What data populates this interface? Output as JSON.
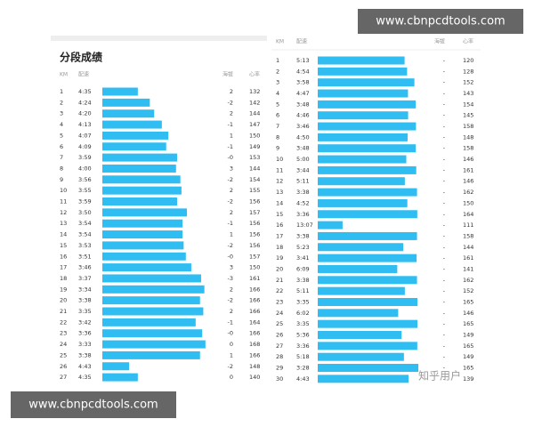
{
  "left": {
    "title": "分段成绩",
    "header": [
      "KM",
      "配速",
      "海拔",
      "心率"
    ],
    "rows": [
      [
        "1",
        "4:35",
        "2",
        "132"
      ],
      [
        "2",
        "4:24",
        "-2",
        "142"
      ],
      [
        "3",
        "4:20",
        "2",
        "144"
      ],
      [
        "4",
        "4:13",
        "-1",
        "147"
      ],
      [
        "5",
        "4:07",
        "1",
        "150"
      ],
      [
        "6",
        "4:09",
        "-1",
        "149"
      ],
      [
        "7",
        "3:59",
        "-0",
        "153"
      ],
      [
        "8",
        "4:00",
        "3",
        "144"
      ],
      [
        "9",
        "3:56",
        "-2",
        "154"
      ],
      [
        "10",
        "3:55",
        "2",
        "155"
      ],
      [
        "11",
        "3:59",
        "-2",
        "156"
      ],
      [
        "12",
        "3:50",
        "2",
        "157"
      ],
      [
        "13",
        "3:54",
        "-1",
        "156"
      ],
      [
        "14",
        "3:54",
        "1",
        "156"
      ],
      [
        "15",
        "3:53",
        "-2",
        "156"
      ],
      [
        "16",
        "3:51",
        "-0",
        "157"
      ],
      [
        "17",
        "3:46",
        "3",
        "150"
      ],
      [
        "18",
        "3:37",
        "-3",
        "161"
      ],
      [
        "19",
        "3:34",
        "2",
        "166"
      ],
      [
        "20",
        "3:38",
        "-2",
        "166"
      ],
      [
        "21",
        "3:35",
        "2",
        "166"
      ],
      [
        "22",
        "3:42",
        "-1",
        "164"
      ],
      [
        "23",
        "3:36",
        "-0",
        "166"
      ],
      [
        "24",
        "3:33",
        "0",
        "168"
      ],
      [
        "25",
        "3:38",
        "1",
        "166"
      ],
      [
        "26",
        "4:43",
        "-2",
        "148"
      ],
      [
        "27",
        "4:35",
        "0",
        "140"
      ]
    ]
  },
  "right": {
    "header": [
      "KM",
      "配速",
      "海拔",
      "心率"
    ],
    "rows": [
      [
        "1",
        "5:13",
        "-",
        "120"
      ],
      [
        "2",
        "4:54",
        "-",
        "128"
      ],
      [
        "3",
        "3:58",
        "-",
        "152"
      ],
      [
        "4",
        "4:47",
        "-",
        "143"
      ],
      [
        "5",
        "3:48",
        "-",
        "154"
      ],
      [
        "6",
        "4:46",
        "-",
        "145"
      ],
      [
        "7",
        "3:46",
        "-",
        "158"
      ],
      [
        "8",
        "4:50",
        "-",
        "148"
      ],
      [
        "9",
        "3:48",
        "-",
        "158"
      ],
      [
        "10",
        "5:00",
        "-",
        "146"
      ],
      [
        "11",
        "3:44",
        "-",
        "161"
      ],
      [
        "12",
        "5:11",
        "-",
        "146"
      ],
      [
        "13",
        "3:38",
        "-",
        "162"
      ],
      [
        "14",
        "4:52",
        "-",
        "150"
      ],
      [
        "15",
        "3:36",
        "-",
        "164"
      ],
      [
        "16",
        "13:07",
        "-",
        "111"
      ],
      [
        "17",
        "3:38",
        "-",
        "158"
      ],
      [
        "18",
        "5:23",
        "-",
        "144"
      ],
      [
        "19",
        "3:41",
        "-",
        "161"
      ],
      [
        "20",
        "6:09",
        "-",
        "141"
      ],
      [
        "21",
        "3:38",
        "-",
        "162"
      ],
      [
        "22",
        "5:11",
        "-",
        "152"
      ],
      [
        "23",
        "3:35",
        "-",
        "165"
      ],
      [
        "24",
        "6:02",
        "-",
        "146"
      ],
      [
        "25",
        "3:35",
        "-",
        "165"
      ],
      [
        "26",
        "5:36",
        "-",
        "149"
      ],
      [
        "27",
        "3:36",
        "-",
        "165"
      ],
      [
        "28",
        "5:18",
        "-",
        "149"
      ],
      [
        "29",
        "3:28",
        "-",
        "165"
      ],
      [
        "30",
        "4:43",
        "-",
        "139"
      ]
    ]
  },
  "watermarks": {
    "top": "www.cbnpcdtools.com",
    "bottom": "www.cbnpcdtools.com",
    "zhihu": "知乎用户"
  }
}
